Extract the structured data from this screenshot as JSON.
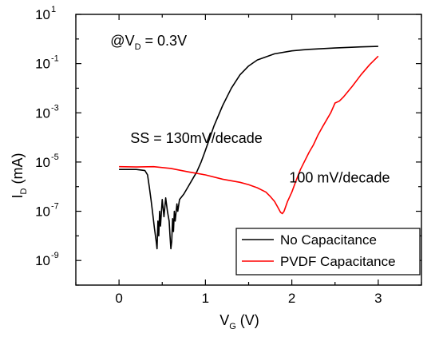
{
  "chart_data": {
    "type": "line",
    "title": "",
    "xlabel": {
      "main": "V",
      "sub": "G",
      "unit": "(V)"
    },
    "ylabel": {
      "main": "I",
      "sub": "D",
      "unit": "(mA)"
    },
    "xlim": [
      -0.5,
      3.5
    ],
    "ylim": [
      1e-10,
      10
    ],
    "yscale": "log",
    "xticks": [
      0,
      1,
      2,
      3
    ],
    "xtick_labels": [
      "0",
      "1",
      "2",
      "3"
    ],
    "yticks": [
      {
        "base": "10",
        "exp": "1",
        "value": 10
      },
      {
        "base": "10",
        "exp": "-1",
        "value": 0.1
      },
      {
        "base": "10",
        "exp": "-3",
        "value": 0.001
      },
      {
        "base": "10",
        "exp": "-5",
        "value": 1e-05
      },
      {
        "base": "10",
        "exp": "-7",
        "value": 1e-07
      },
      {
        "base": "10",
        "exp": "-9",
        "value": 1e-09
      }
    ],
    "grid": false,
    "legend_position": "bottom-right",
    "annotations": [
      {
        "id": "vd",
        "parts": [
          "@V",
          "D",
          " = 0.3V"
        ],
        "x": -0.1,
        "y": 0.55
      },
      {
        "id": "ss1",
        "parts": [
          "SS = 130mV/decade"
        ],
        "x": 0.13,
        "y": 6e-05
      },
      {
        "id": "ss2",
        "parts": [
          "100 mV/decade"
        ],
        "x": 1.97,
        "y": 1.5e-06
      }
    ],
    "series": [
      {
        "name": "No Capacitance",
        "color": "#000000",
        "points": [
          [
            0.0,
            5e-06
          ],
          [
            0.1,
            5e-06
          ],
          [
            0.2,
            5e-06
          ],
          [
            0.3,
            4.5e-06
          ],
          [
            0.33,
            3e-06
          ],
          [
            0.35,
            1e-06
          ],
          [
            0.37,
            3e-07
          ],
          [
            0.39,
            8e-08
          ],
          [
            0.41,
            2e-08
          ],
          [
            0.43,
            6e-09
          ],
          [
            0.44,
            3e-09
          ],
          [
            0.45,
            4e-08
          ],
          [
            0.46,
            1e-08
          ],
          [
            0.47,
            1e-07
          ],
          [
            0.48,
            2.5e-08
          ],
          [
            0.5,
            3e-07
          ],
          [
            0.52,
            6e-08
          ],
          [
            0.54,
            3.5e-07
          ],
          [
            0.56,
            1e-07
          ],
          [
            0.58,
            4e-08
          ],
          [
            0.59,
            1e-08
          ],
          [
            0.6,
            3e-09
          ],
          [
            0.61,
            6e-09
          ],
          [
            0.62,
            5e-08
          ],
          [
            0.63,
            1.5e-08
          ],
          [
            0.64,
            1e-07
          ],
          [
            0.65,
            4e-08
          ],
          [
            0.67,
            2e-07
          ],
          [
            0.68,
            1e-07
          ],
          [
            0.7,
            3e-07
          ],
          [
            0.75,
            5e-07
          ],
          [
            0.8,
            1e-06
          ],
          [
            0.85,
            2e-06
          ],
          [
            0.9,
            4e-06
          ],
          [
            0.95,
            1e-05
          ],
          [
            1.0,
            3e-05
          ],
          [
            1.1,
            0.0003
          ],
          [
            1.2,
            0.002
          ],
          [
            1.3,
            0.01
          ],
          [
            1.4,
            0.035
          ],
          [
            1.5,
            0.08
          ],
          [
            1.6,
            0.14
          ],
          [
            1.8,
            0.25
          ],
          [
            2.0,
            0.33
          ],
          [
            2.2,
            0.38
          ],
          [
            2.5,
            0.43
          ],
          [
            2.8,
            0.48
          ],
          [
            3.0,
            0.5
          ]
        ]
      },
      {
        "name": "PVDF Capacitance",
        "color": "#ff0000",
        "points": [
          [
            0.0,
            6.5e-06
          ],
          [
            0.2,
            6.3e-06
          ],
          [
            0.4,
            6.5e-06
          ],
          [
            0.6,
            5.5e-06
          ],
          [
            0.8,
            4e-06
          ],
          [
            1.0,
            3e-06
          ],
          [
            1.2,
            2e-06
          ],
          [
            1.4,
            1.5e-06
          ],
          [
            1.5,
            1.2e-06
          ],
          [
            1.6,
            9e-07
          ],
          [
            1.7,
            6e-07
          ],
          [
            1.75,
            4e-07
          ],
          [
            1.8,
            2.5e-07
          ],
          [
            1.84,
            1.4e-07
          ],
          [
            1.87,
            9e-08
          ],
          [
            1.89,
            8e-08
          ],
          [
            1.91,
            1e-07
          ],
          [
            1.95,
            2.5e-07
          ],
          [
            2.0,
            6e-07
          ],
          [
            2.05,
            1.8e-06
          ],
          [
            2.1,
            5e-06
          ],
          [
            2.2,
            2.5e-05
          ],
          [
            2.25,
            5e-05
          ],
          [
            2.3,
            0.00012
          ],
          [
            2.35,
            0.00025
          ],
          [
            2.4,
            0.0005
          ],
          [
            2.45,
            0.001
          ],
          [
            2.5,
            0.0025
          ],
          [
            2.55,
            0.003
          ],
          [
            2.6,
            0.0045
          ],
          [
            2.7,
            0.012
          ],
          [
            2.8,
            0.035
          ],
          [
            2.9,
            0.09
          ],
          [
            3.0,
            0.2
          ]
        ]
      }
    ]
  }
}
